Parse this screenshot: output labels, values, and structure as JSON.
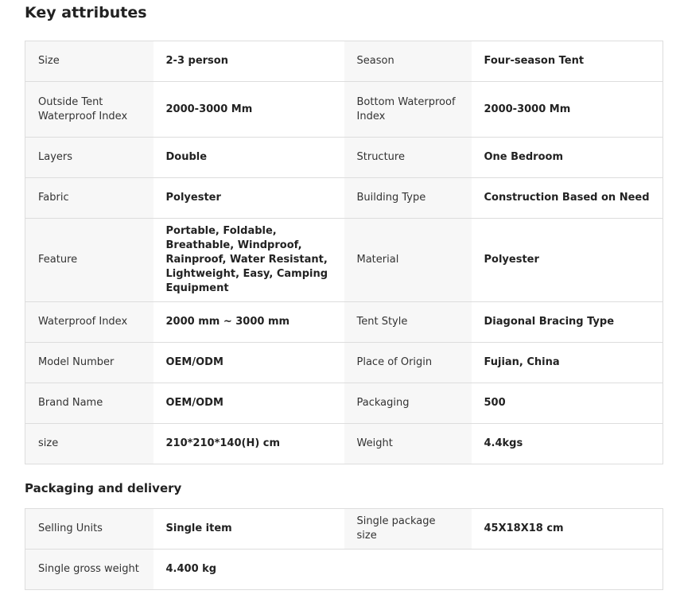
{
  "key_attributes": {
    "title": "Key attributes",
    "rows": [
      [
        "Size",
        "2-3 person",
        "Season",
        "Four-season Tent"
      ],
      [
        "Outside Tent Waterproof Index",
        "2000-3000 Mm",
        "Bottom Waterproof Index",
        "2000-3000 Mm"
      ],
      [
        "Layers",
        "Double",
        "Structure",
        "One Bedroom"
      ],
      [
        "Fabric",
        "Polyester",
        "Building Type",
        "Construction Based on Need"
      ],
      [
        "Feature",
        "Portable, Foldable, Breathable, Windproof, Rainproof, Water Resistant, Lightweight, Easy, Camping Equipment",
        "Material",
        "Polyester"
      ],
      [
        "Waterproof Index",
        "2000 mm ~ 3000 mm",
        "Tent Style",
        "Diagonal Bracing Type"
      ],
      [
        "Model Number",
        "OEM/ODM",
        "Place of Origin",
        "Fujian, China"
      ],
      [
        "Brand Name",
        "OEM/ODM",
        "Packaging",
        "500"
      ],
      [
        "size",
        "210*210*140(H) cm",
        "Weight",
        "4.4kgs"
      ]
    ]
  },
  "packaging": {
    "title": "Packaging and delivery",
    "rows": [
      [
        "Selling Units",
        "Single item",
        "Single package size",
        "45X18X18 cm"
      ],
      [
        "Single gross weight",
        "4.400 kg",
        "",
        ""
      ]
    ]
  }
}
